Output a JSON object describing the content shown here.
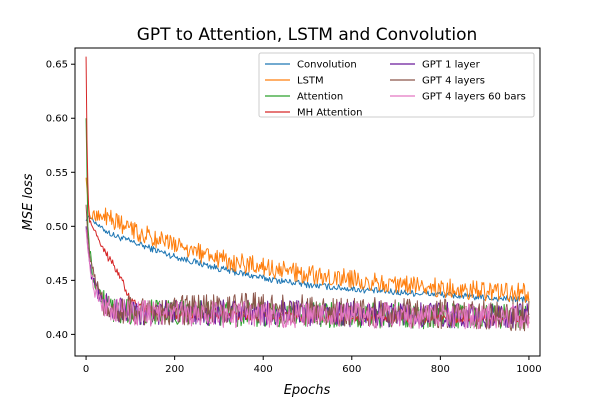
{
  "chart_data": {
    "type": "line",
    "title": "GPT to Attention, LSTM and Convolution",
    "xlabel": "Epochs",
    "ylabel": "MSE loss",
    "xlim": [
      -25,
      1025
    ],
    "ylim": [
      0.38,
      0.665
    ],
    "x_ticks": [
      0,
      200,
      400,
      600,
      800,
      1000
    ],
    "y_ticks": [
      0.4,
      0.45,
      0.5,
      0.55,
      0.6,
      0.65
    ],
    "x_tick_labels": [
      "0",
      "200",
      "400",
      "600",
      "800",
      "1000"
    ],
    "y_tick_labels": [
      "0.40",
      "0.45",
      "0.50",
      "0.55",
      "0.60",
      "0.65"
    ],
    "legend_position": "top-right",
    "series": [
      {
        "name": "Convolution",
        "color": "#1f77b4",
        "noise": 0.003,
        "x": [
          0,
          5,
          10,
          30,
          60,
          100,
          200,
          300,
          400,
          500,
          600,
          700,
          800,
          900,
          1000
        ],
        "y": [
          0.505,
          0.51,
          0.508,
          0.5,
          0.492,
          0.486,
          0.472,
          0.461,
          0.452,
          0.446,
          0.442,
          0.439,
          0.437,
          0.434,
          0.432
        ]
      },
      {
        "name": "LSTM",
        "color": "#ff7f0e",
        "noise": 0.009,
        "x": [
          0,
          5,
          10,
          20,
          40,
          60,
          100,
          200,
          300,
          400,
          500,
          600,
          700,
          800,
          900,
          1000
        ],
        "y": [
          0.545,
          0.52,
          0.512,
          0.51,
          0.51,
          0.505,
          0.497,
          0.482,
          0.47,
          0.462,
          0.456,
          0.451,
          0.447,
          0.443,
          0.44,
          0.438
        ]
      },
      {
        "name": "Attention",
        "color": "#2ca02c",
        "noise": 0.012,
        "x": [
          0,
          4,
          10,
          20,
          40,
          60,
          100,
          200,
          400,
          600,
          800,
          1000
        ],
        "y": [
          0.6,
          0.5,
          0.47,
          0.445,
          0.43,
          0.424,
          0.421,
          0.42,
          0.419,
          0.418,
          0.417,
          0.416
        ]
      },
      {
        "name": "MH Attention",
        "color": "#d62728",
        "noise": 0.004,
        "x": [
          0,
          2,
          5,
          8,
          15,
          25,
          40,
          60,
          80,
          100,
          150,
          200,
          400,
          600,
          800,
          1000
        ],
        "y": [
          0.657,
          0.58,
          0.52,
          0.505,
          0.5,
          0.492,
          0.478,
          0.465,
          0.452,
          0.432,
          0.42,
          0.418,
          0.417,
          0.416,
          0.415,
          0.414
        ]
      },
      {
        "name": "GPT 1 layer",
        "color": "#6a1b9a",
        "noise": 0.012,
        "x": [
          0,
          4,
          10,
          20,
          40,
          60,
          100,
          200,
          400,
          600,
          800,
          1000
        ],
        "y": [
          0.5,
          0.48,
          0.462,
          0.442,
          0.428,
          0.424,
          0.421,
          0.42,
          0.42,
          0.419,
          0.418,
          0.418
        ]
      },
      {
        "name": "GPT 4 layers",
        "color": "#8c564b",
        "noise": 0.014,
        "x": [
          0,
          4,
          10,
          20,
          40,
          60,
          100,
          200,
          300,
          400,
          500,
          600,
          800,
          1000
        ],
        "y": [
          0.52,
          0.49,
          0.468,
          0.448,
          0.43,
          0.425,
          0.423,
          0.422,
          0.424,
          0.425,
          0.423,
          0.421,
          0.419,
          0.417
        ]
      },
      {
        "name": "GPT 4 layers 60 bars",
        "color": "#e377c2",
        "noise": 0.012,
        "x": [
          0,
          4,
          10,
          20,
          40,
          60,
          100,
          200,
          400,
          600,
          800,
          1000
        ],
        "y": [
          0.497,
          0.478,
          0.46,
          0.44,
          0.426,
          0.422,
          0.42,
          0.419,
          0.418,
          0.418,
          0.417,
          0.417
        ]
      }
    ]
  }
}
